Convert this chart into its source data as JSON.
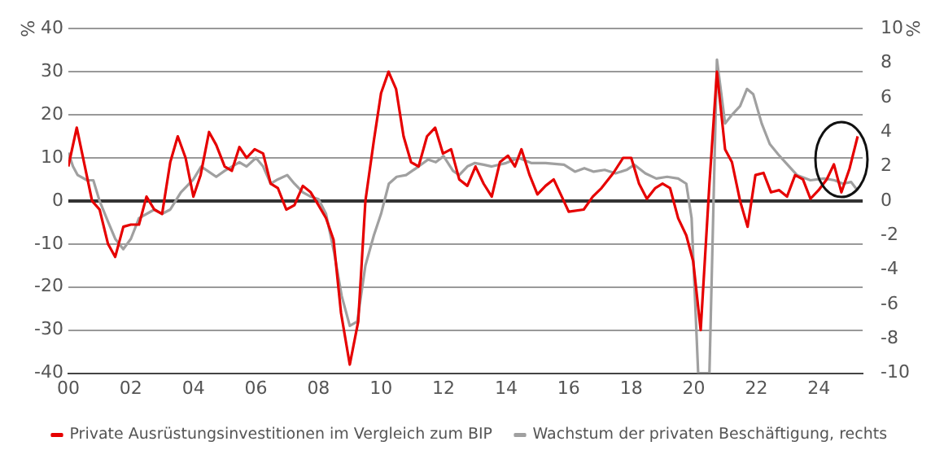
{
  "chart_data": {
    "type": "line",
    "ylabel": "%",
    "y2label": "%",
    "xlim": [
      2000,
      2025.4
    ],
    "xticks": [
      {
        "value": 2000,
        "label": "00"
      },
      {
        "value": 2002,
        "label": "02"
      },
      {
        "value": 2004,
        "label": "04"
      },
      {
        "value": 2006,
        "label": "06"
      },
      {
        "value": 2008,
        "label": "08"
      },
      {
        "value": 2010,
        "label": "10"
      },
      {
        "value": 2012,
        "label": "12"
      },
      {
        "value": 2014,
        "label": "14"
      },
      {
        "value": 2016,
        "label": "16"
      },
      {
        "value": 2018,
        "label": "18"
      },
      {
        "value": 2020,
        "label": "20"
      },
      {
        "value": 2022,
        "label": "22"
      },
      {
        "value": 2024,
        "label": "24"
      }
    ],
    "ylim": [
      -40,
      40
    ],
    "yticks": [
      -40,
      -30,
      -20,
      -10,
      0,
      10,
      20,
      30,
      40
    ],
    "y2lim": [
      -10,
      10
    ],
    "y2ticks": [
      -10,
      -8,
      -6,
      -4,
      -2,
      0,
      2,
      4,
      6,
      8,
      10
    ],
    "grid": "y",
    "legend": "bottom",
    "marker": "none",
    "line_style": "solid",
    "ref_lines": [
      {
        "axis": "y",
        "value": 0,
        "color": "#333333"
      }
    ],
    "series": [
      {
        "name": "Private Ausrüstungsinvestitionen im Vergleich zum BIP",
        "color": "#e60000",
        "x": [
          2000.0,
          2000.27,
          2000.76,
          2001.0,
          2001.27,
          2001.5,
          2001.76,
          2002.0,
          2002.26,
          2002.5,
          2002.75,
          2003.0,
          2003.26,
          2003.5,
          2003.75,
          2004.0,
          2004.23,
          2004.5,
          2004.73,
          2005.0,
          2005.23,
          2005.47,
          2005.7,
          2005.96,
          2006.23,
          2006.47,
          2006.7,
          2006.97,
          2007.23,
          2007.5,
          2007.75,
          2008.0,
          2008.24,
          2008.48,
          2008.72,
          2009.0,
          2009.27,
          2009.5,
          2009.77,
          2010.0,
          2010.24,
          2010.48,
          2010.72,
          2010.96,
          2011.2,
          2011.47,
          2011.73,
          2011.98,
          2012.24,
          2012.5,
          2012.76,
          2013.02,
          2013.28,
          2013.54,
          2013.8,
          2014.06,
          2014.28,
          2014.49,
          2014.75,
          2015.0,
          2015.26,
          2015.52,
          2015.78,
          2016.0,
          2016.48,
          2016.77,
          2017.05,
          2017.43,
          2017.74,
          2018.0,
          2018.25,
          2018.5,
          2018.77,
          2019.0,
          2019.24,
          2019.5,
          2019.76,
          2019.98,
          2020.22,
          2020.5,
          2020.74,
          2021.0,
          2021.22,
          2021.48,
          2021.72,
          2021.97,
          2022.23,
          2022.47,
          2022.73,
          2022.98,
          2023.24,
          2023.49,
          2023.73,
          2023.99,
          2024.25,
          2024.48,
          2024.72,
          2024.98,
          2025.24
        ],
        "values": [
          8,
          17,
          0,
          -2,
          -10,
          -13,
          -6,
          -5.5,
          -5.5,
          1,
          -2,
          -3,
          9,
          15,
          10,
          1,
          6,
          16,
          13,
          8,
          7,
          12.5,
          10,
          12,
          11,
          4,
          3,
          -2,
          -1,
          3.5,
          2,
          -1,
          -4,
          -9,
          -26,
          -38,
          -28,
          0,
          14,
          25,
          30,
          26,
          15,
          9,
          8,
          15,
          17,
          11,
          12,
          5,
          3.5,
          8,
          4,
          1,
          9,
          10.5,
          8,
          12,
          6,
          1.5,
          3.5,
          5,
          1,
          -2.5,
          -2,
          1,
          3,
          6.5,
          10,
          10,
          4,
          0.5,
          3,
          4,
          3,
          -4,
          -8,
          -14,
          -30,
          4,
          30,
          12,
          9,
          0,
          -6,
          6,
          6.5,
          2,
          2.5,
          1,
          6,
          5,
          0.5,
          2.5,
          5,
          8.5,
          2,
          7.5,
          15
        ]
      },
      {
        "name": "Wachstum der privaten Beschäftigung, rechts",
        "color": "#a0a0a0",
        "axis": "y2",
        "x": [
          2000.0,
          2000.15,
          2000.3,
          2000.6,
          2000.8,
          2001.0,
          2001.27,
          2001.5,
          2001.76,
          2002.0,
          2002.26,
          2002.75,
          2003.0,
          2003.26,
          2003.6,
          2004.0,
          2004.25,
          2004.73,
          2005.0,
          2005.47,
          2005.7,
          2006.0,
          2006.23,
          2006.47,
          2006.7,
          2007.0,
          2007.23,
          2007.5,
          2007.75,
          2008.0,
          2008.24,
          2008.5,
          2008.74,
          2009.0,
          2009.24,
          2009.5,
          2009.77,
          2010.0,
          2010.25,
          2010.5,
          2010.8,
          2011.2,
          2011.5,
          2011.75,
          2012.0,
          2012.3,
          2012.5,
          2012.76,
          2013.0,
          2013.28,
          2013.54,
          2014.0,
          2014.4,
          2014.8,
          2015.26,
          2015.85,
          2016.2,
          2016.5,
          2016.8,
          2017.15,
          2017.5,
          2017.85,
          2018.1,
          2018.45,
          2018.8,
          2019.15,
          2019.5,
          2019.76,
          2019.93,
          2020.14,
          2020.5,
          2020.74,
          2021.0,
          2021.22,
          2021.48,
          2021.7,
          2021.9,
          2022.17,
          2022.43,
          2022.7,
          2022.95,
          2023.3,
          2023.73,
          2024.16,
          2024.5,
          2024.77,
          2025.03,
          2025.24
        ],
        "values": [
          2.8,
          2,
          1.5,
          1.2,
          1.2,
          0,
          -1.2,
          -2.2,
          -2.8,
          -2.2,
          -1,
          -0.5,
          -0.75,
          -0.5,
          0.5,
          1.25,
          2,
          1.4,
          1.75,
          2.25,
          2,
          2.5,
          2,
          1,
          1.25,
          1.5,
          1,
          0.5,
          0.25,
          0.1,
          -0.75,
          -3,
          -5.5,
          -7.25,
          -7,
          -3.75,
          -2,
          -0.75,
          1,
          1.4,
          1.5,
          2,
          2.4,
          2.25,
          2.6,
          1.75,
          1.5,
          2,
          2.2,
          2.1,
          2,
          2.2,
          2.5,
          2.2,
          2.2,
          2.1,
          1.7,
          1.9,
          1.7,
          1.8,
          1.6,
          1.8,
          2.1,
          1.6,
          1.3,
          1.4,
          1.3,
          1,
          -1,
          -10,
          -10,
          8.2,
          4.5,
          5,
          5.5,
          6.5,
          6.2,
          4.5,
          3.3,
          2.7,
          2.2,
          1.5,
          1.2,
          1.3,
          1.2,
          1,
          1.1,
          0.6
        ]
      }
    ]
  }
}
